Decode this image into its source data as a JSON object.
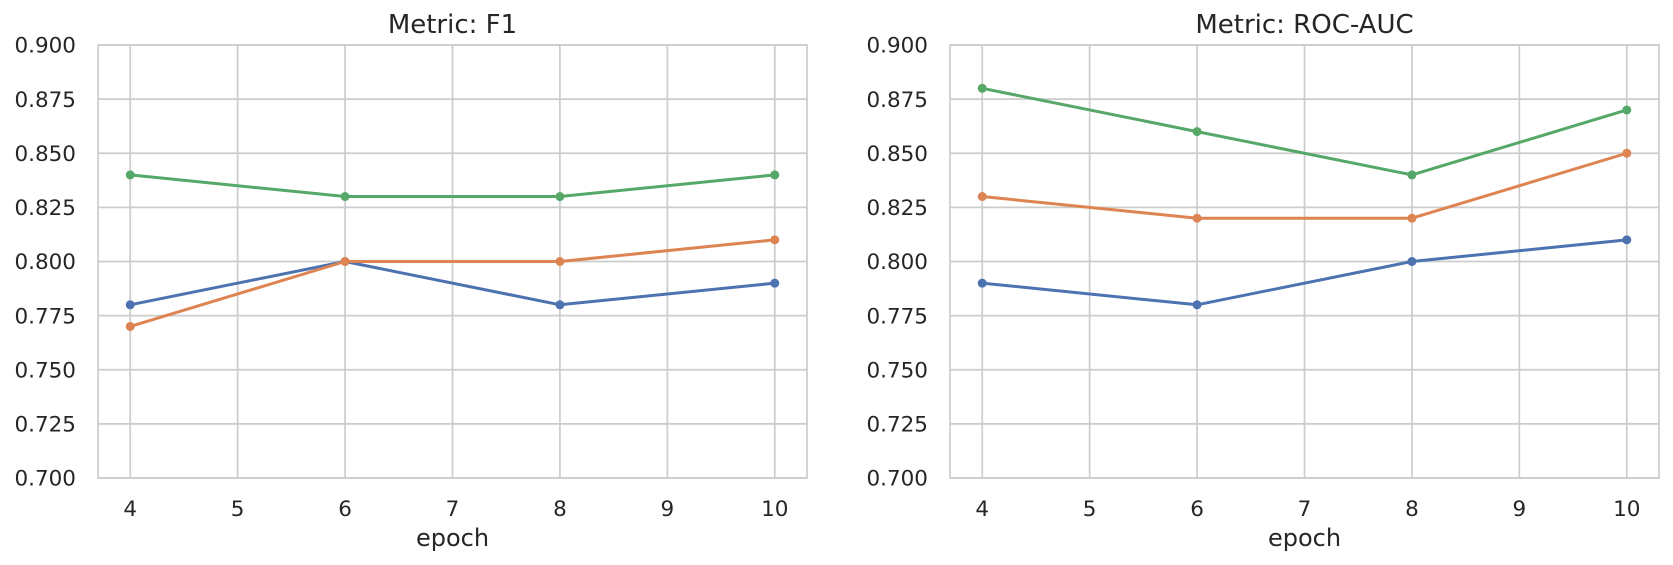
{
  "figure": {
    "background": "#ffffff",
    "text_color": "#262626",
    "grid_color": "#cccccc"
  },
  "chart_data": [
    {
      "type": "line",
      "title": "Metric: F1",
      "xlabel": "epoch",
      "ylabel": "",
      "x": [
        4,
        6,
        8,
        10
      ],
      "xticks": [
        4,
        5,
        6,
        7,
        8,
        9,
        10
      ],
      "yticks": [
        0.7,
        0.725,
        0.75,
        0.775,
        0.8,
        0.825,
        0.85,
        0.875,
        0.9
      ],
      "ytick_decimals": 3,
      "xlim": [
        3.7,
        10.3
      ],
      "ylim": [
        0.7,
        0.9
      ],
      "grid": true,
      "legend": "none",
      "marker": "circle",
      "series": [
        {
          "name": "blue",
          "color": "#4C72B0",
          "values": [
            0.78,
            0.8,
            0.78,
            0.79
          ]
        },
        {
          "name": "orange",
          "color": "#DD8452",
          "values": [
            0.77,
            0.8,
            0.8,
            0.81
          ]
        },
        {
          "name": "green",
          "color": "#55A868",
          "values": [
            0.84,
            0.83,
            0.83,
            0.84
          ]
        }
      ]
    },
    {
      "type": "line",
      "title": "Metric: ROC-AUC",
      "xlabel": "epoch",
      "ylabel": "",
      "x": [
        4,
        6,
        8,
        10
      ],
      "xticks": [
        4,
        5,
        6,
        7,
        8,
        9,
        10
      ],
      "yticks": [
        0.7,
        0.725,
        0.75,
        0.775,
        0.8,
        0.825,
        0.85,
        0.875,
        0.9
      ],
      "ytick_decimals": 3,
      "xlim": [
        3.7,
        10.3
      ],
      "ylim": [
        0.7,
        0.9
      ],
      "grid": true,
      "legend": "none",
      "marker": "circle",
      "series": [
        {
          "name": "blue",
          "color": "#4C72B0",
          "values": [
            0.79,
            0.78,
            0.8,
            0.81
          ]
        },
        {
          "name": "orange",
          "color": "#DD8452",
          "values": [
            0.83,
            0.82,
            0.82,
            0.85
          ]
        },
        {
          "name": "green",
          "color": "#55A868",
          "values": [
            0.88,
            0.86,
            0.84,
            0.87
          ]
        }
      ]
    }
  ]
}
